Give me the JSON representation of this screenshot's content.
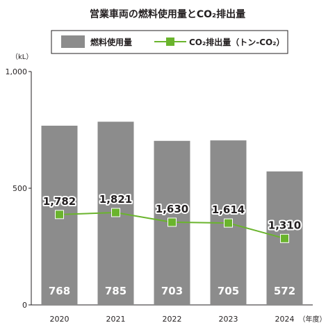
{
  "chart_data": {
    "type": "bar",
    "title": "営業車両の燃料使用量とCO₂排出量",
    "categories": [
      "2020",
      "2021",
      "2022",
      "2023",
      "2024"
    ],
    "x_unit": "（年度）",
    "y_unit": "（kL）",
    "ylim": [
      0,
      1000
    ],
    "y_ticks": [
      "0",
      "500",
      "1,000"
    ],
    "series": [
      {
        "name": "燃料使用量",
        "type": "bar",
        "color": "#8c8c8c",
        "values": [
          768,
          785,
          703,
          705,
          572
        ],
        "labels": [
          "768",
          "785",
          "703",
          "705",
          "572"
        ]
      },
      {
        "name": "CO₂排出量（トン-CO₂）",
        "type": "line",
        "color": "#6ab42d",
        "values": [
          1782,
          1821,
          1630,
          1614,
          1310
        ],
        "labels": [
          "1,782",
          "1,821",
          "1,630",
          "1,614",
          "1,310"
        ]
      }
    ],
    "grid": false,
    "legend_position": "top"
  }
}
